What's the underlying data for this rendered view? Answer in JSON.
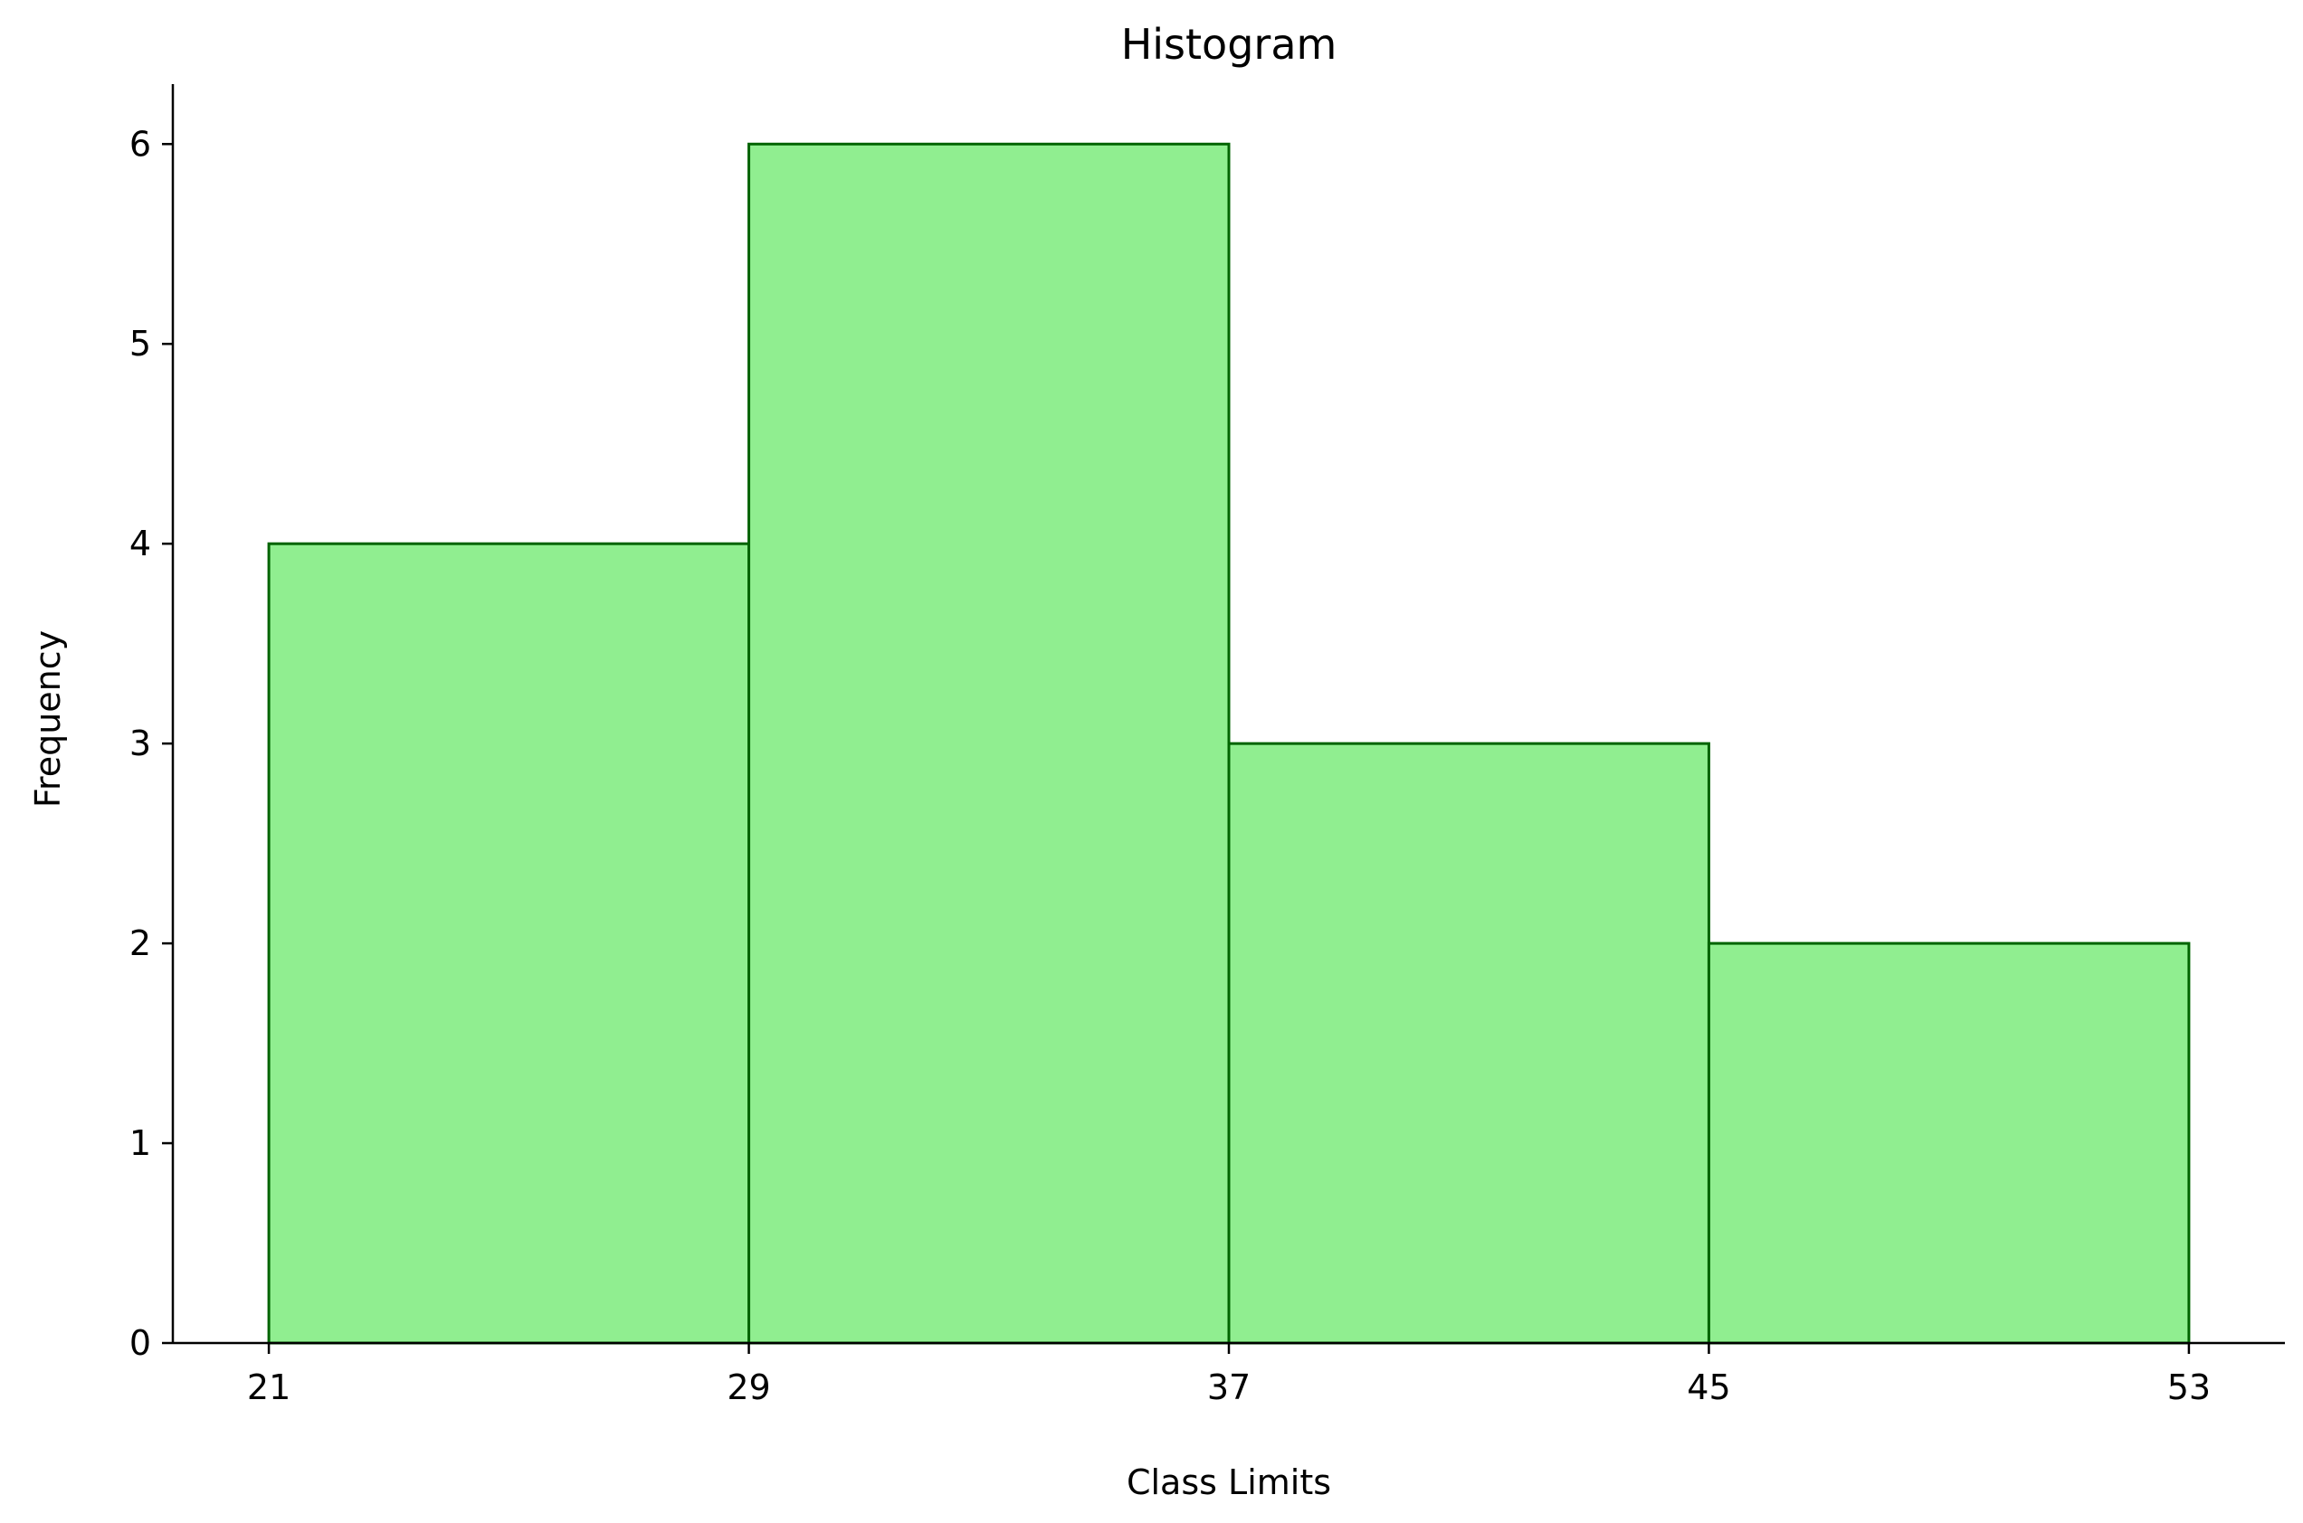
{
  "chart_data": {
    "type": "bar",
    "title": "Histogram",
    "xlabel": "Class Limits",
    "ylabel": "Frequency",
    "bin_edges": [
      21,
      29,
      37,
      45,
      53
    ],
    "values": [
      4,
      6,
      3,
      2
    ],
    "xlim": [
      19.4,
      54.6
    ],
    "ylim": [
      0,
      6.3
    ],
    "x_ticks": [
      "21",
      "29",
      "37",
      "45",
      "53"
    ],
    "y_ticks": [
      "0",
      "1",
      "2",
      "3",
      "4",
      "5",
      "6"
    ],
    "grid": false,
    "colors": {
      "bar_fill": "#90EE90",
      "bar_edge": "#006400",
      "axis": "#000000"
    }
  }
}
